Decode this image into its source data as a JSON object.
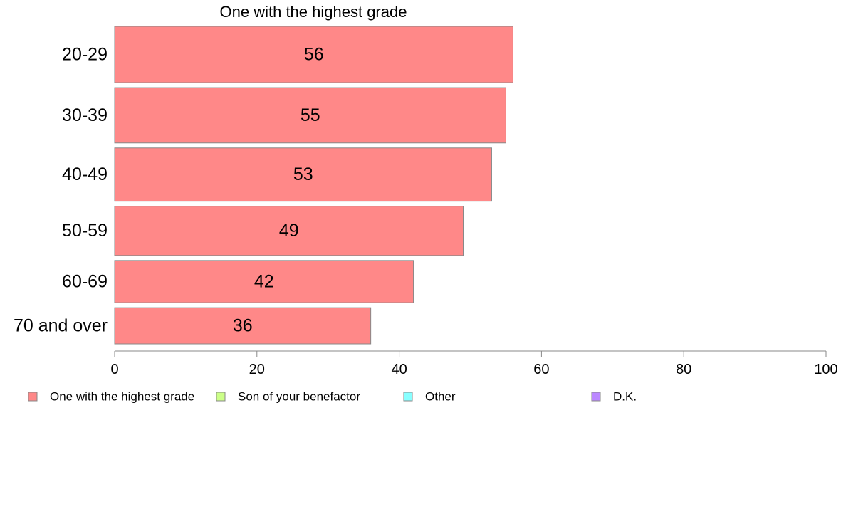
{
  "chart_data": {
    "type": "bar",
    "orientation": "horizontal",
    "title": "One with the highest grade",
    "categories": [
      "20-29",
      "30-39",
      "40-49",
      "50-59",
      "60-69",
      "70 and over"
    ],
    "relative_widths": [
      56,
      55,
      53,
      49,
      42,
      36
    ],
    "series": [
      {
        "name": "One with the highest grade",
        "color": "#FF8888",
        "values": [
          56,
          55,
          53,
          49,
          42,
          36
        ]
      }
    ],
    "data_labels": [
      "56",
      "55",
      "53",
      "49",
      "42",
      "36"
    ],
    "xlim": [
      0,
      100
    ],
    "xticks": [
      0,
      20,
      40,
      60,
      80,
      100
    ],
    "grid": false,
    "legend": {
      "placement": "bottom",
      "items": [
        {
          "label": "One with the highest grade",
          "color": "#FF8888"
        },
        {
          "label": "Son of your benefactor",
          "color": "#CCFF88"
        },
        {
          "label": "Other",
          "color": "#88FFFF"
        },
        {
          "label": "D.K.",
          "color": "#BB88FF"
        }
      ]
    }
  }
}
